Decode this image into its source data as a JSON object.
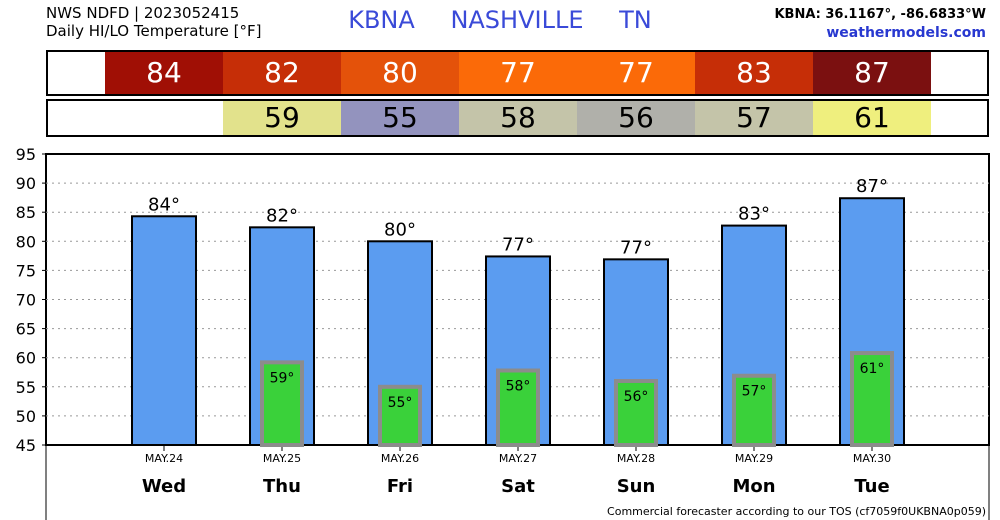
{
  "header": {
    "line1": "NWS NDFD | 2023052415",
    "line2": "Daily HI/LO Temperature [°F]",
    "station": "KBNA",
    "city": "NASHVILLE",
    "state": "TN",
    "coords": "KBNA: 36.1167°, -86.6833°W",
    "site": "weathermodels.com"
  },
  "footer": "Commercial forecaster according to our TOS (cf7059f0UKBNA0p059)",
  "colors": {
    "hi_bar": "#5b9cf0",
    "lo_bar": "#3ad13a",
    "lo_bar_border": "#8c8c8c",
    "hi_cells": [
      "#a00f05",
      "#c62e07",
      "#e4520a",
      "#fb6a08",
      "#fb6a08",
      "#c62e07",
      "#7b1010"
    ],
    "lo_cells": [
      "",
      "#e2e28c",
      "#9393be",
      "#c4c4a9",
      "#b0b0aa",
      "#c4c4a9",
      "#efef7e"
    ]
  },
  "chart_data": {
    "type": "bar",
    "categories": [
      "Wed",
      "Thu",
      "Fri",
      "Sat",
      "Sun",
      "Mon",
      "Tue"
    ],
    "dates": [
      "MAY.24",
      "MAY.25",
      "MAY.26",
      "MAY.27",
      "MAY.28",
      "MAY.29",
      "MAY.30"
    ],
    "hi": [
      84,
      82,
      80,
      77,
      77,
      83,
      87
    ],
    "hi_exact": [
      84.3,
      82.4,
      80.0,
      77.4,
      76.9,
      82.7,
      87.4
    ],
    "lo": [
      null,
      59,
      55,
      58,
      56,
      57,
      61
    ],
    "lo_exact": [
      null,
      59.2,
      55.0,
      57.8,
      56.0,
      56.9,
      60.8
    ],
    "ylim": [
      45,
      95
    ],
    "yticks": [
      45,
      50,
      55,
      60,
      65,
      70,
      75,
      80,
      85,
      90,
      95
    ],
    "grid": true,
    "degree_symbol": "°"
  }
}
